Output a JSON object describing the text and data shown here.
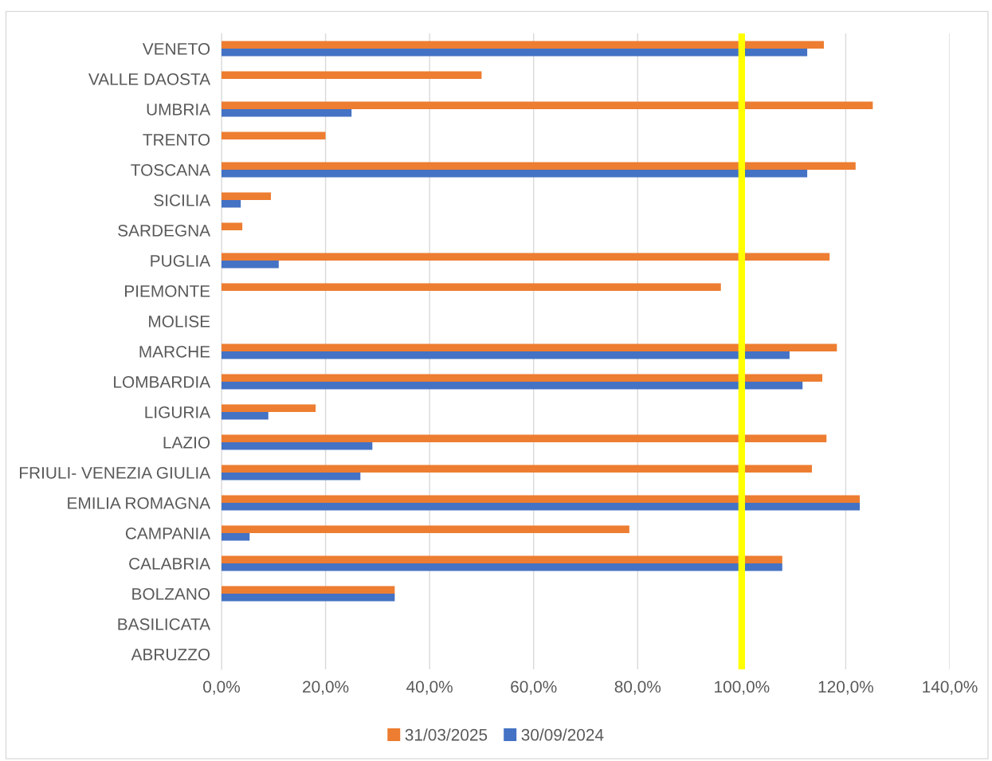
{
  "chart_data": {
    "type": "bar",
    "orientation": "horizontal",
    "categories": [
      "VENETO",
      "VALLE DAOSTA",
      "UMBRIA",
      "TRENTO",
      "TOSCANA",
      "SICILIA",
      "SARDEGNA",
      "PUGLIA",
      "PIEMONTE",
      "MOLISE",
      "MARCHE",
      "LOMBARDIA",
      "LIGURIA",
      "LAZIO",
      "FRIULI- VENEZIA GIULIA",
      "EMILIA ROMAGNA",
      "CAMPANIA",
      "CALABRIA",
      "BOLZANO",
      "BASILICATA",
      "ABRUZZO"
    ],
    "series": [
      {
        "name": "31/03/2025",
        "color": "#ed7d31",
        "values": [
          115.8,
          50.0,
          125.2,
          20.0,
          121.9,
          9.5,
          4.0,
          116.9,
          96.0,
          0,
          118.3,
          115.5,
          18.1,
          116.3,
          113.5,
          122.7,
          78.4,
          107.8,
          33.3,
          0,
          0
        ]
      },
      {
        "name": "30/09/2024",
        "color": "#4472c4",
        "values": [
          112.6,
          0,
          25.0,
          0,
          112.6,
          3.7,
          0,
          11.0,
          0,
          0,
          109.2,
          111.7,
          9.0,
          29.0,
          26.7,
          122.7,
          5.4,
          107.8,
          33.3,
          0,
          0
        ]
      }
    ],
    "xlim": [
      0,
      140
    ],
    "xticks": [
      {
        "value": 0,
        "label": "0,0%"
      },
      {
        "value": 20,
        "label": "20,0%"
      },
      {
        "value": 40,
        "label": "40,0%"
      },
      {
        "value": 60,
        "label": "60,0%"
      },
      {
        "value": 80,
        "label": "80,0%"
      },
      {
        "value": 100,
        "label": "100,0%"
      },
      {
        "value": 120,
        "label": "120,0%"
      },
      {
        "value": 140,
        "label": "140,0%"
      }
    ],
    "ref_lines": [
      {
        "axis": "x",
        "value": 100,
        "label": null,
        "color": "#ffff00"
      }
    ],
    "grid": "x",
    "legend": "bottom"
  }
}
